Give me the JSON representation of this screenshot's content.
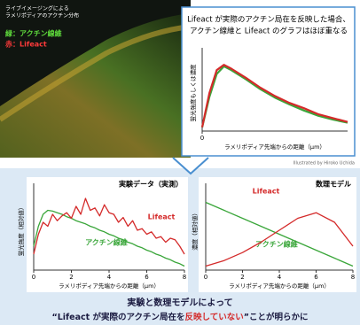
{
  "image": {
    "caption": [
      "ライブイメージングによる",
      "ラメリポディアのアクチン分布"
    ],
    "green_label": "緑：アクチン線維",
    "red_label": "赤：Lifeact"
  },
  "credit": "Illustrated by Hiroko Uchida",
  "chart_data": [
    {
      "type": "line",
      "title": [
        "Lifeact が実際のアクチン局在を反映した場合、",
        "アクチン線維と Lifeact のグラフはほぼ重なる"
      ],
      "x_label": "ラメリポディア先端からの距離（μm）",
      "y_label": "蛍光強度もしくは濃度",
      "x": [
        0,
        0.5,
        1,
        1.5,
        2,
        3,
        4,
        5,
        6,
        7,
        8,
        9,
        10
      ],
      "xlim": [
        0,
        10
      ],
      "xticks": [
        0
      ],
      "ylim": [
        0,
        1
      ],
      "series": [
        {
          "color": "#3aa63a",
          "values": [
            0.05,
            0.45,
            0.75,
            0.85,
            0.8,
            0.68,
            0.55,
            0.44,
            0.35,
            0.27,
            0.2,
            0.15,
            0.11
          ]
        },
        {
          "color": "#d42a2a",
          "values": [
            0.05,
            0.5,
            0.8,
            0.87,
            0.82,
            0.7,
            0.57,
            0.46,
            0.37,
            0.3,
            0.22,
            0.17,
            0.12
          ]
        }
      ]
    },
    {
      "type": "line",
      "title": "実験データ（実測）",
      "x_label": "ラメリポディア先端からの距離（μm）",
      "y_label": "蛍光強度（相対値）",
      "x": [
        0,
        0.25,
        0.5,
        0.75,
        1,
        1.25,
        1.5,
        1.75,
        2,
        2.25,
        2.5,
        2.75,
        3,
        3.25,
        3.5,
        3.75,
        4,
        4.25,
        4.5,
        4.75,
        5,
        5.25,
        5.5,
        5.75,
        6,
        6.25,
        6.5,
        6.75,
        7,
        7.25,
        7.5,
        7.75,
        8
      ],
      "xlim": [
        0,
        8
      ],
      "xticks": [
        0,
        2,
        4,
        6,
        8
      ],
      "ylim": [
        0,
        1
      ],
      "series": [
        {
          "name": "アクチン線維",
          "color": "#3aa63a",
          "values": [
            0.3,
            0.55,
            0.7,
            0.75,
            0.74,
            0.72,
            0.7,
            0.67,
            0.65,
            0.62,
            0.6,
            0.58,
            0.55,
            0.53,
            0.5,
            0.48,
            0.45,
            0.43,
            0.4,
            0.38,
            0.35,
            0.33,
            0.3,
            0.28,
            0.25,
            0.23,
            0.2,
            0.18,
            0.15,
            0.13,
            0.1,
            0.08,
            0.05
          ]
        },
        {
          "name": "Lifeact",
          "color": "#d42a2a",
          "values": [
            0.2,
            0.45,
            0.6,
            0.55,
            0.7,
            0.62,
            0.68,
            0.72,
            0.65,
            0.8,
            0.7,
            0.9,
            0.75,
            0.78,
            0.68,
            0.82,
            0.72,
            0.7,
            0.6,
            0.66,
            0.55,
            0.62,
            0.5,
            0.52,
            0.45,
            0.48,
            0.4,
            0.42,
            0.35,
            0.4,
            0.38,
            0.3,
            0.2
          ]
        }
      ]
    },
    {
      "type": "line",
      "title": "数理モデル",
      "x_label": "ラメリポディア先端からの距離（μm）",
      "y_label": "濃度（相対値）",
      "x": [
        0,
        1,
        2,
        3,
        4,
        5,
        6,
        7,
        8
      ],
      "xlim": [
        0,
        8
      ],
      "xticks": [
        0,
        2,
        4,
        6,
        8
      ],
      "ylim": [
        0,
        1
      ],
      "series": [
        {
          "name": "アクチン線維",
          "color": "#3aa63a",
          "values": [
            0.85,
            0.75,
            0.65,
            0.55,
            0.45,
            0.35,
            0.25,
            0.15,
            0.05
          ]
        },
        {
          "name": "Lifeact",
          "color": "#d42a2a",
          "values": [
            0.05,
            0.12,
            0.22,
            0.35,
            0.5,
            0.65,
            0.72,
            0.6,
            0.3
          ]
        }
      ]
    }
  ],
  "footer": {
    "line1": "実験と数理モデルによって",
    "line2": [
      "“Lifeact が実際のアクチン局在を",
      "反映していない",
      "”ことが明らかに"
    ]
  }
}
